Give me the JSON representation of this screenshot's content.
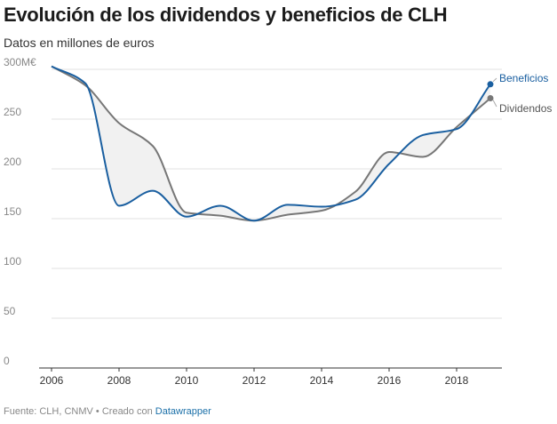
{
  "title": "Evolución de los dividendos y beneficios de CLH",
  "subtitle": "Datos en millones de euros",
  "footer": {
    "source": "Fuente: CLH, CNMV",
    "separator": " • ",
    "created_with": "Creado con ",
    "tool": "Datawrapper"
  },
  "colors": {
    "beneficios": "#1a5fa0",
    "dividendos": "#777777",
    "area_fill": "#f1f1f1",
    "grid": "#e2e2e2",
    "axis": "#333333"
  },
  "chart_data": {
    "type": "line",
    "x": [
      2006,
      2007,
      2008,
      2009,
      2010,
      2011,
      2012,
      2013,
      2014,
      2015,
      2016,
      2017,
      2018,
      2019
    ],
    "series": [
      {
        "name": "Beneficios",
        "values": [
          303,
          286,
          163,
          178,
          152,
          163,
          148,
          164,
          162,
          169,
          205,
          234,
          240,
          285
        ]
      },
      {
        "name": "Dividendos",
        "values": [
          303,
          284,
          246,
          223,
          156,
          153,
          148,
          154,
          158,
          177,
          217,
          212,
          242,
          271
        ]
      }
    ],
    "xlabel": "",
    "ylabel": "",
    "ylim": [
      0,
      300
    ],
    "yticks": [
      0,
      50,
      100,
      150,
      200,
      250,
      300
    ],
    "ytick_labels": [
      "0",
      "50",
      "100",
      "150",
      "200",
      "250",
      "300M€"
    ],
    "xticks": [
      2006,
      2008,
      2010,
      2012,
      2014,
      2016,
      2018
    ],
    "xtick_labels": [
      "2006",
      "2008",
      "2010",
      "2012",
      "2014",
      "2016",
      "2018"
    ],
    "grid": true,
    "legend": "inline labels at line ends",
    "shaded_area_between_series": true
  }
}
